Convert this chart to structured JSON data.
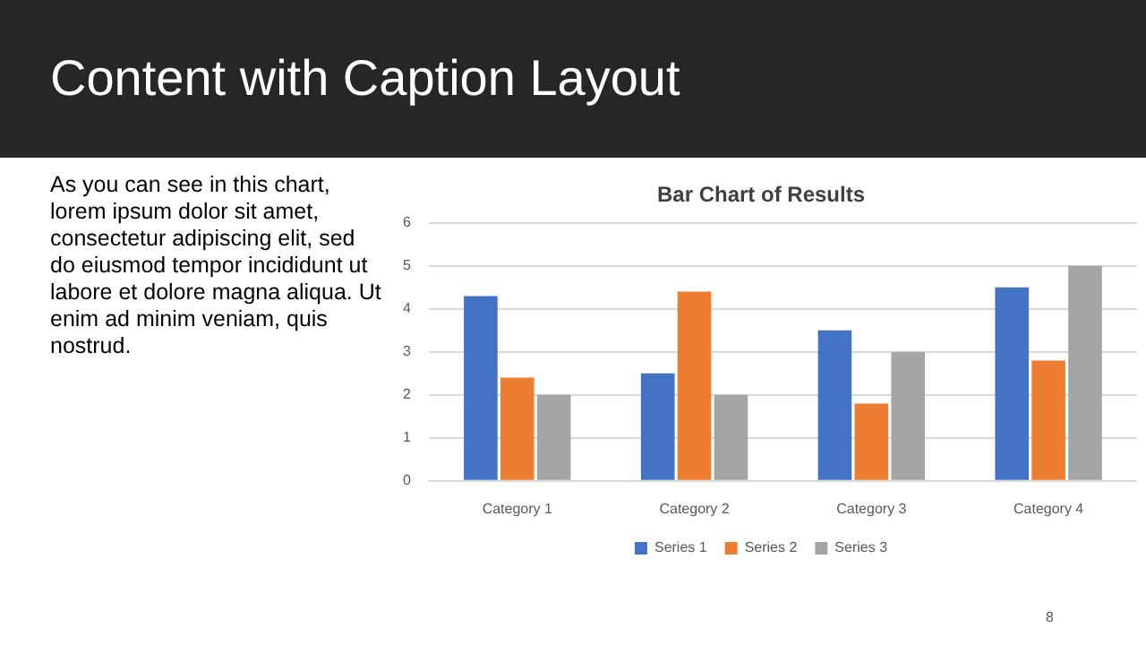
{
  "chart_data": {
    "type": "bar",
    "title": "Bar Chart of Results",
    "categories": [
      "Category 1",
      "Category 2",
      "Category 3",
      "Category 4"
    ],
    "series": [
      {
        "name": "Series 1",
        "color": "#4472c4",
        "values": [
          4.3,
          2.5,
          3.5,
          4.5
        ]
      },
      {
        "name": "Series 2",
        "color": "#ed7d31",
        "values": [
          2.4,
          4.4,
          1.8,
          2.8
        ]
      },
      {
        "name": "Series 3",
        "color": "#a5a5a5",
        "values": [
          2,
          2,
          3,
          5
        ]
      }
    ],
    "ylim": [
      0,
      6
    ],
    "yticks": [
      0,
      1,
      2,
      3,
      4,
      5,
      6
    ],
    "grid": "y",
    "legend": "bottom",
    "annotations": [
      "Content with Caption Layout",
      "As you can see in this chart, lorem ipsum dolor sit amet, consectetur adipiscing elit, sed do eiusmod tempor incididunt ut labore et dolore magna aliqua. Ut enim ad minim veniam, quis nostrud.",
      "8"
    ]
  }
}
